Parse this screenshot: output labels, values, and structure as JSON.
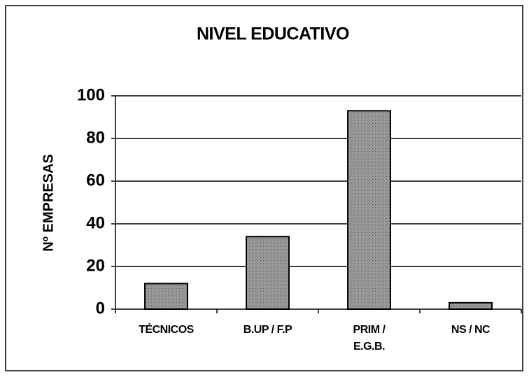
{
  "chart_data": {
    "type": "bar",
    "title": "NIVEL EDUCATIVO",
    "y_label": "Nº EMPRESAS",
    "categories": [
      "TÉCNICOS",
      "B.UP / F.P",
      "PRIM /\nE.G.B.",
      "NS / NC"
    ],
    "values": [
      12,
      34,
      93,
      3
    ],
    "color": "#9a9a9a",
    "ylim": [
      0,
      100
    ],
    "yticks": [
      0,
      20,
      40,
      60,
      80,
      100
    ],
    "grid": true
  }
}
